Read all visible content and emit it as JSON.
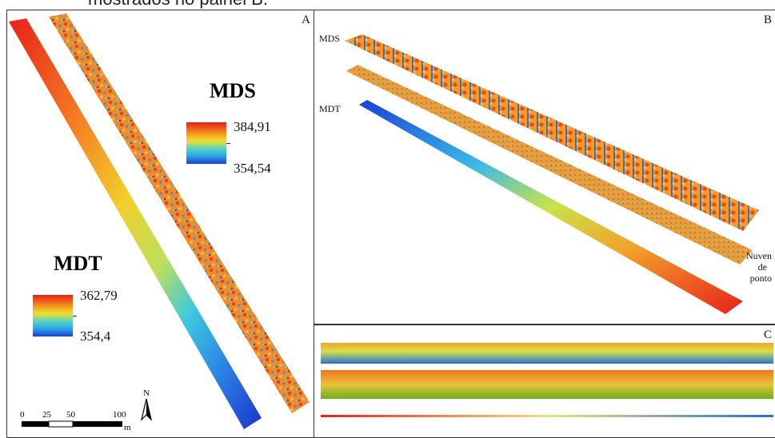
{
  "caption": "mostrados no painel B.",
  "panel_a": {
    "label": "A",
    "mds": {
      "title": "MDS",
      "max": "384,91",
      "min": "354,54"
    },
    "mdt": {
      "title": "MDT",
      "max": "362,79",
      "min": "354,4"
    },
    "scale": {
      "t0": "0",
      "t1": "25",
      "t2": "50",
      "t3": "100",
      "unit": "m"
    },
    "north": "N"
  },
  "panel_b": {
    "label": "B",
    "mds_label": "MDS",
    "mdt_label": "MDT",
    "cloud_line1": "Nuven",
    "cloud_line2": "de",
    "cloud_line3": "ponto"
  },
  "panel_c": {
    "label": "C"
  }
}
